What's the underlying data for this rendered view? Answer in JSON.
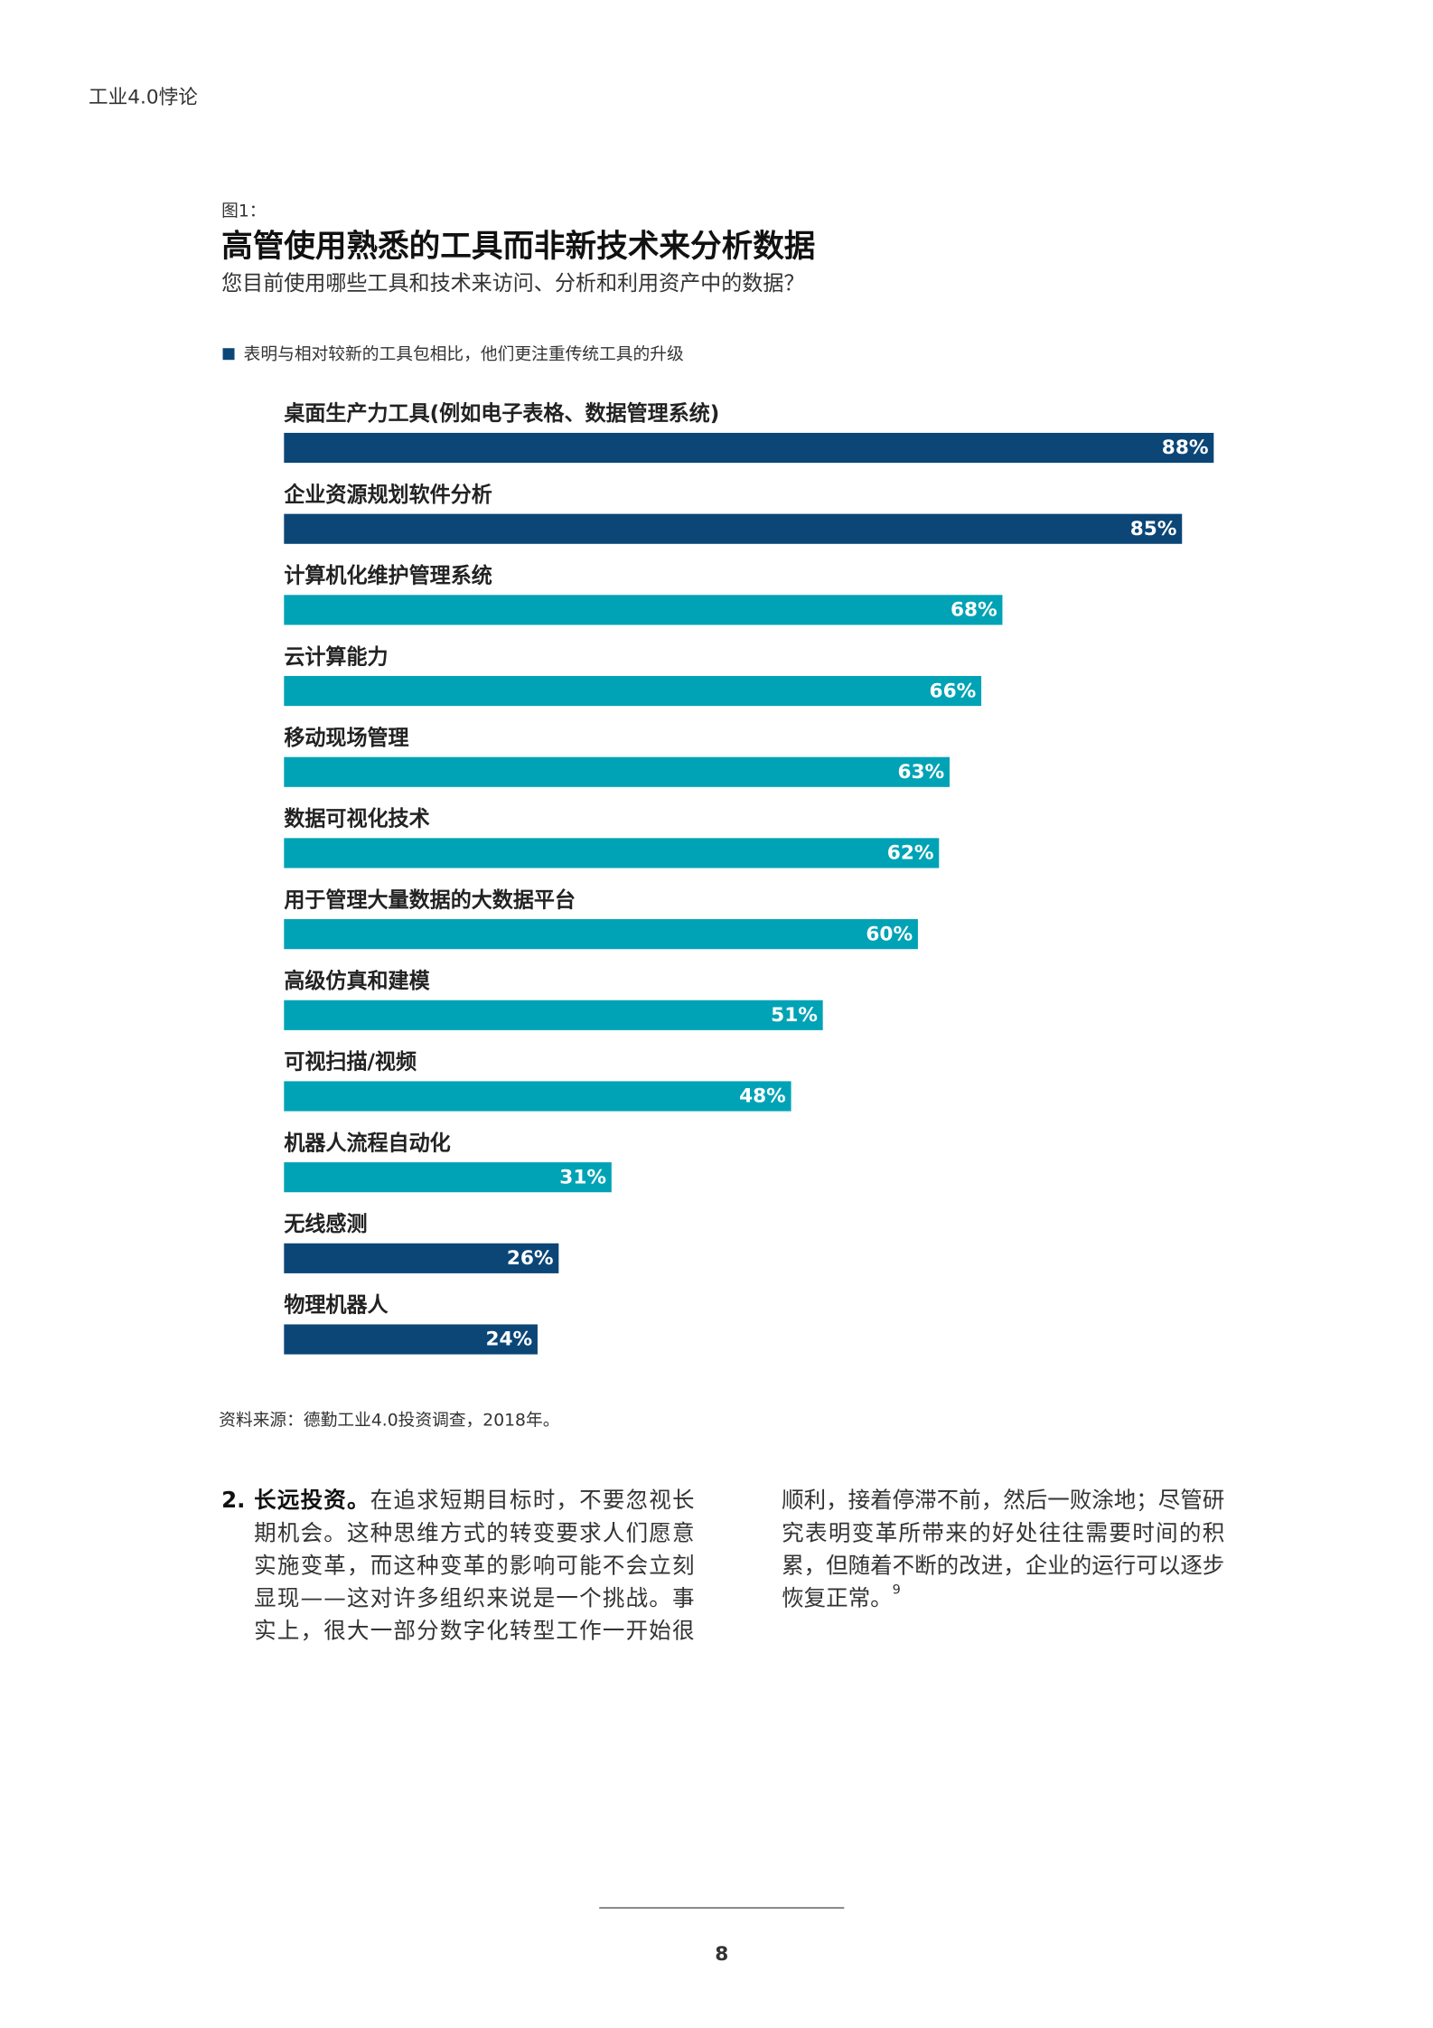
{
  "header": {
    "title": "工业4.0悖论"
  },
  "figure": {
    "label": "图1："
  },
  "chart_data": {
    "type": "bar",
    "orientation": "horizontal",
    "title": "高管使用熟悉的工具而非新技术来分析数据",
    "subtitle": "您目前使用哪些工具和技术来访问、分析和利用资产中的数据？",
    "legend": {
      "text": "表明与相对较新的工具包相比，他们更注重传统工具的升级",
      "color": "#0b4677"
    },
    "categories": [
      "桌面生产力工具(例如电子表格、数据管理系统)",
      "企业资源规划软件分析",
      "计算机化维护管理系统",
      "云计算能力",
      "移动现场管理",
      "数据可视化技术",
      "用于管理大量数据的大数据平台",
      "高级仿真和建模",
      "可视扫描/视频",
      "机器人流程自动化",
      "无线感测",
      "物理机器人"
    ],
    "values": [
      88,
      85,
      68,
      66,
      63,
      62,
      60,
      51,
      48,
      31,
      26,
      24
    ],
    "value_labels": [
      "88%",
      "85%",
      "68%",
      "66%",
      "63%",
      "62%",
      "60%",
      "51%",
      "48%",
      "31%",
      "26%",
      "24%"
    ],
    "colors": [
      "#0b4677",
      "#0b4677",
      "#00a3b5",
      "#00a3b5",
      "#00a3b5",
      "#00a3b5",
      "#00a3b5",
      "#00a3b5",
      "#00a3b5",
      "#00a3b5",
      "#0b4677",
      "#0b4677"
    ],
    "xlim": [
      0,
      100
    ],
    "source": "资料来源：德勤工业4.0投资调查，2018年。"
  },
  "body": {
    "left": {
      "number": "2.",
      "heading": "长远投资。",
      "lines": [
        "在追求短期目标时，不要忽视长",
        "期机会。这种思维方式的转变要求人们愿意",
        "实施变革，而这种变革的影响可能不会立刻",
        "显现——这对许多组织来说是一个挑战。事",
        "实上，很大一部分数字化转型工作一开始很"
      ]
    },
    "right": {
      "lines": [
        "顺利，接着停滞不前，然后一败涂地；尽管研",
        "究表明变革所带来的好处往往需要时间的积",
        "累，但随着不断的改进，企业的运行可以逐步",
        "恢复正常。"
      ],
      "footnote": "9"
    }
  },
  "footer": {
    "page": "8"
  }
}
